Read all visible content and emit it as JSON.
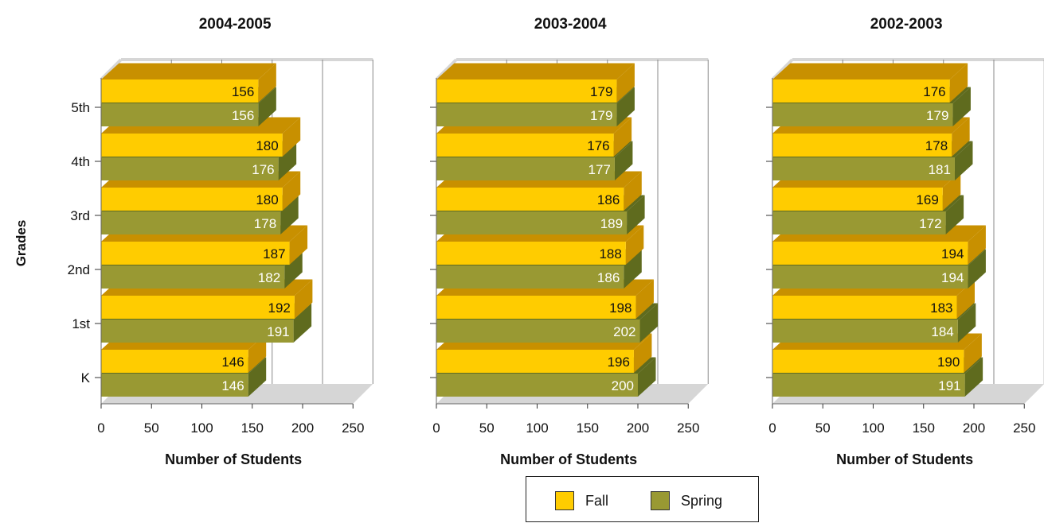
{
  "y_axis_title": "Grades",
  "colors": {
    "fall": "#FFCC00",
    "fall_dark": "#C89000",
    "spring": "#999933",
    "spring_dark": "#5F6B1E",
    "wall": "#D6D6D6",
    "axis": "#666666"
  },
  "legend": {
    "fall": "Fall",
    "spring": "Spring"
  },
  "chart_data": [
    {
      "type": "bar",
      "orientation": "horizontal",
      "title": "2004-2005",
      "xlabel": "Number of Students",
      "ylabel": "Grades",
      "xlim": [
        0,
        250
      ],
      "xticks": [
        "0",
        "50",
        "100",
        "150",
        "200",
        "250"
      ],
      "categories": [
        "K",
        "1st",
        "2nd",
        "3rd",
        "4th",
        "5th"
      ],
      "series": [
        {
          "name": "Fall",
          "values": [
            146,
            192,
            187,
            180,
            180,
            156
          ]
        },
        {
          "name": "Spring",
          "values": [
            146,
            191,
            182,
            178,
            176,
            156
          ]
        }
      ]
    },
    {
      "type": "bar",
      "orientation": "horizontal",
      "title": "2003-2004",
      "xlabel": "Number of Students",
      "ylabel": "",
      "xlim": [
        0,
        250
      ],
      "xticks": [
        "0",
        "50",
        "100",
        "150",
        "200",
        "250"
      ],
      "categories": [
        "K",
        "1st",
        "2nd",
        "3rd",
        "4th",
        "5th"
      ],
      "series": [
        {
          "name": "Fall",
          "values": [
            196,
            198,
            188,
            186,
            176,
            179
          ]
        },
        {
          "name": "Spring",
          "values": [
            200,
            202,
            186,
            189,
            177,
            179
          ]
        }
      ]
    },
    {
      "type": "bar",
      "orientation": "horizontal",
      "title": "2002-2003",
      "xlabel": "Number of Students",
      "ylabel": "",
      "xlim": [
        0,
        250
      ],
      "xticks": [
        "0",
        "50",
        "100",
        "150",
        "200",
        "250"
      ],
      "categories": [
        "K",
        "1st",
        "2nd",
        "3rd",
        "4th",
        "5th"
      ],
      "series": [
        {
          "name": "Fall",
          "values": [
            190,
            183,
            194,
            169,
            178,
            176
          ]
        },
        {
          "name": "Spring",
          "values": [
            191,
            184,
            194,
            172,
            181,
            179
          ]
        }
      ]
    }
  ]
}
